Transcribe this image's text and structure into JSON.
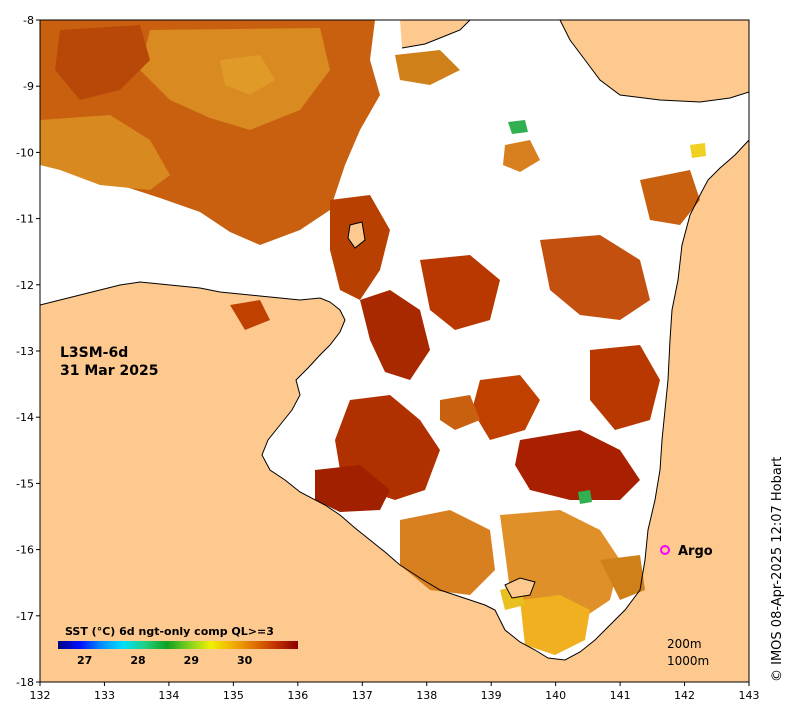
{
  "map": {
    "product": "L3SM-6d",
    "date": "31 Mar 2025",
    "credit": "© IMOS 08-Apr-2025 12:07 Hobart",
    "argo_label": "Argo",
    "legend": {
      "contour_1": "200m",
      "contour_2": "1000m"
    },
    "colorbar": {
      "title": "SST (°C) 6d ngt-only comp QL>=3",
      "ticks": [
        "27",
        "28",
        "29",
        "30"
      ],
      "colors": [
        "#00007f",
        "#0010ff",
        "#0090ff",
        "#00e0ff",
        "#20d080",
        "#10a020",
        "#80d020",
        "#f0f000",
        "#f0b000",
        "#e07000",
        "#c03000",
        "#8b0000"
      ]
    },
    "x_axis_labels": [
      "132",
      "133",
      "134",
      "135",
      "136",
      "137",
      "138",
      "139",
      "140",
      "141",
      "142",
      "143"
    ],
    "y_axis_labels": [
      "-8",
      "-9",
      "-10",
      "-11",
      "-12",
      "-13",
      "-14",
      "-15",
      "-16",
      "-17",
      "-18"
    ],
    "colors": {
      "land": "#fdc98f",
      "no_data": "#ffffff",
      "sst_warm": "#c05000",
      "sst_hot": "#a82000",
      "argo": "#ff00ff"
    }
  }
}
